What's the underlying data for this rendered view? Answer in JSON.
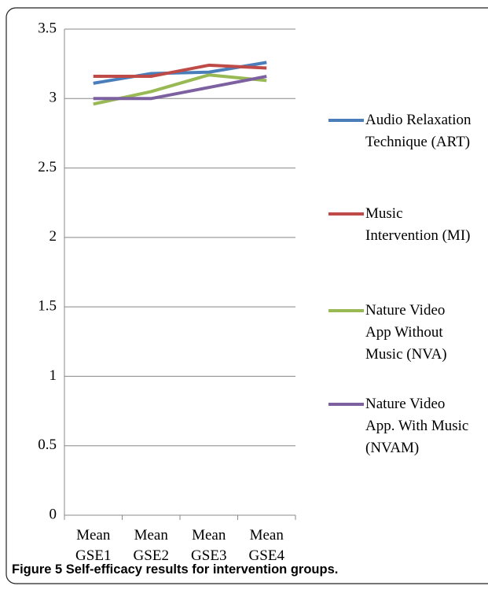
{
  "chart_data": {
    "type": "line",
    "caption": "Figure 5 Self-efficacy results for intervention groups.",
    "categories": [
      "Mean GSE1",
      "Mean GSE2",
      "Mean GSE3",
      "Mean GSE4"
    ],
    "series": [
      {
        "name": "Audio Relaxation Technique (ART)",
        "color": "#4a7ebb",
        "values": [
          3.11,
          3.18,
          3.19,
          3.26
        ]
      },
      {
        "name": "Music Intervention (MI)",
        "color": "#be4b48",
        "values": [
          3.16,
          3.16,
          3.24,
          3.22
        ]
      },
      {
        "name": "Nature Video App Without Music (NVA)",
        "color": "#98b954",
        "values": [
          2.96,
          3.05,
          3.17,
          3.13
        ]
      },
      {
        "name": "Nature Video App. With Music (NVAM)",
        "color": "#7d60a0",
        "values": [
          3.0,
          3.0,
          3.08,
          3.16
        ]
      }
    ],
    "ylim": [
      0,
      3.5
    ],
    "yticks": [
      0,
      0.5,
      1,
      1.5,
      2,
      2.5,
      3,
      3.5
    ],
    "grid": true,
    "legend": "right"
  }
}
